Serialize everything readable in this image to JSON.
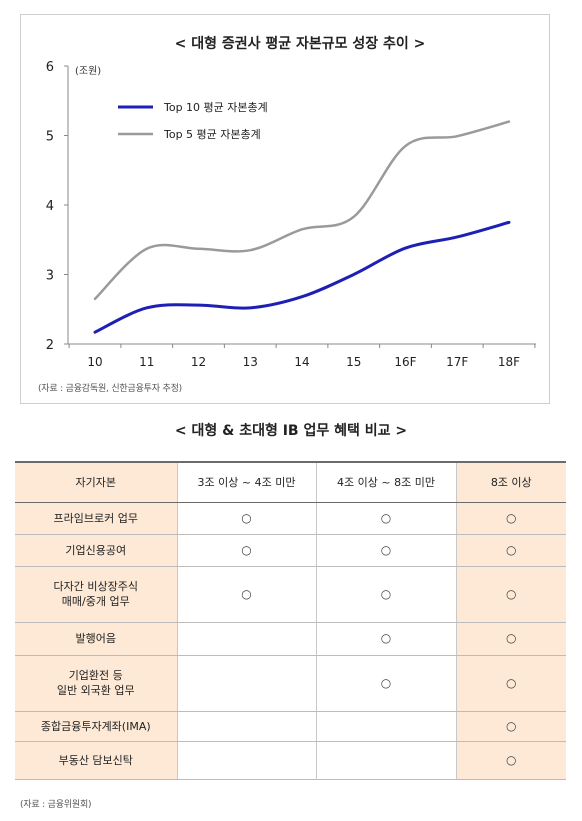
{
  "chart": {
    "title": "< 대형 증권사 평균 자본규모 성장 추이 >",
    "unit": "(조원)",
    "source": "(자료 : 금융감독원, 신한금융투자 추정)"
  },
  "chart_data": {
    "type": "line",
    "title": "< 대형 증권사 평균 자본규모 성장 추이 >",
    "ylabel": "(조원)",
    "xlabel": "",
    "categories": [
      "10",
      "11",
      "12",
      "13",
      "14",
      "15",
      "16F",
      "17F",
      "18F"
    ],
    "ylim": [
      2,
      6
    ],
    "yticks": [
      2,
      3,
      4,
      5,
      6
    ],
    "grid": false,
    "legend": "top-left",
    "series": [
      {
        "name": "Top 10 평균 자본총계",
        "color": "#1f1fb4",
        "values": [
          2.17,
          2.52,
          2.56,
          2.52,
          2.68,
          3.0,
          3.38,
          3.54,
          3.75
        ]
      },
      {
        "name": "Top 5 평균 자본총계",
        "color": "#9a9a9a",
        "values": [
          2.65,
          3.37,
          3.37,
          3.35,
          3.65,
          3.83,
          4.85,
          4.99,
          5.2
        ]
      }
    ]
  },
  "table": {
    "title": "< 대형 & 초대형 IB 업무 혜택 비교 >",
    "headers": [
      "자기자본",
      "3조 이상 ~ 4조 미만",
      "4조 이상 ~ 8조 미만",
      "8조 이상"
    ],
    "rows": [
      {
        "label": [
          "프라임브로커 업무"
        ],
        "cells": [
          "○",
          "○",
          "○"
        ]
      },
      {
        "label": [
          "기업신용공여"
        ],
        "cells": [
          "○",
          "○",
          "○"
        ]
      },
      {
        "label": [
          "다자간 비상장주식",
          "매매/중개 업무"
        ],
        "cells": [
          "○",
          "○",
          "○"
        ]
      },
      {
        "label": [
          "발행어음"
        ],
        "cells": [
          "",
          "○",
          "○"
        ]
      },
      {
        "label": [
          "기업환전 등",
          "일반 외국환 업무"
        ],
        "cells": [
          "",
          "○",
          "○"
        ]
      },
      {
        "label": [
          "종합금융투자계좌(IMA)"
        ],
        "cells": [
          "",
          "",
          "○"
        ]
      },
      {
        "label": [
          "부동산 담보신탁"
        ],
        "cells": [
          "",
          "",
          "○"
        ]
      }
    ],
    "source": "(자료 : 금융위원회)"
  }
}
